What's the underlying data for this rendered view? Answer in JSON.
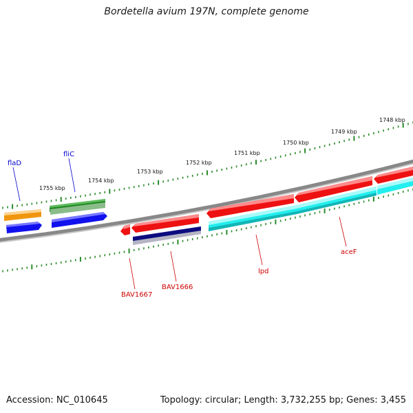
{
  "title": "Bordetella avium 197N, complete genome",
  "footer": {
    "accession": "Accession: NC_010645",
    "summary": "Topology: circular; Length: 3,732,255 bp; Genes: 3,455"
  },
  "kbp_labels": [
    "1748 kbp",
    "1749 kbp",
    "1750 kbp",
    "1751 kbp",
    "1752 kbp",
    "1753 kbp",
    "1754 kbp",
    "1755 kbp"
  ],
  "gene_labels": {
    "flaD": "flaD",
    "fliC": "fliC",
    "bav1667": "BAV1667",
    "bav1666": "BAV1666",
    "lpd": "lpd",
    "acef": "aceF"
  },
  "colors": {
    "backbone": "#888888",
    "tick": "#2a8a2a",
    "forward_label": "#0000cc",
    "reverse_label": "#cc0000",
    "cds_red": "#ee1111",
    "cds_blue": "#1111ee",
    "cds_cyan": "#22eeee",
    "cds_green": "#228822",
    "cds_orange": "#f0960e",
    "cds_navy": "#0c0c80",
    "cds_grey": "#b4b4c4"
  }
}
